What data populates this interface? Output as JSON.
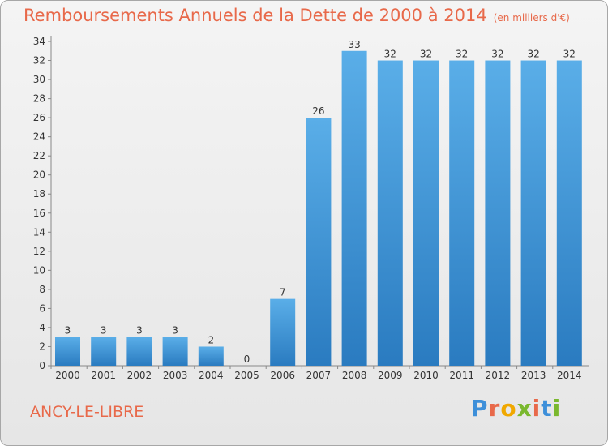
{
  "title": "Remboursements Annuels de la Dette de 2000 à 2014",
  "unit": "(en milliers d'€)",
  "place": "ANCY-LE-LIBRE",
  "logo": {
    "text": "Proxiti",
    "colors": [
      "#3d8fd9",
      "#e8694a",
      "#f0a800",
      "#7ab82e",
      "#e8694a",
      "#3d8fd9",
      "#7ab82e"
    ]
  },
  "colors": {
    "title": "#e8694a",
    "bar_light": "#5aaee8",
    "bar_dark": "#2a7bc0"
  },
  "chart_data": {
    "type": "bar",
    "categories": [
      "2000",
      "2001",
      "2002",
      "2003",
      "2004",
      "2005",
      "2006",
      "2007",
      "2008",
      "2009",
      "2010",
      "2011",
      "2012",
      "2013",
      "2014"
    ],
    "values": [
      3,
      3,
      3,
      3,
      2,
      0,
      7,
      26,
      33,
      32,
      32,
      32,
      32,
      32,
      32
    ],
    "ylim": [
      0,
      34
    ],
    "yticks": [
      0,
      2,
      4,
      6,
      8,
      10,
      12,
      14,
      16,
      18,
      20,
      22,
      24,
      26,
      28,
      30,
      32,
      34
    ],
    "grid": false,
    "xlabel": "",
    "ylabel": ""
  }
}
